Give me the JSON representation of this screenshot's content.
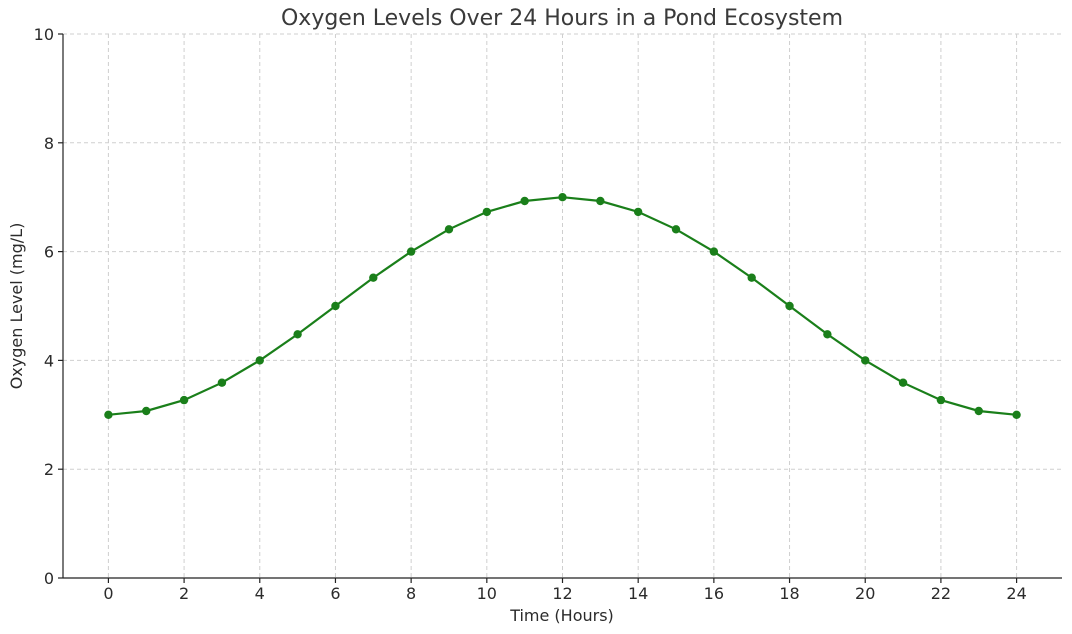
{
  "chart_data": {
    "type": "line",
    "title": "Oxygen Levels Over 24 Hours in a Pond Ecosystem",
    "xlabel": "Time (Hours)",
    "ylabel": "Oxygen Level (mg/L)",
    "xlim": [
      -1.2,
      25.2
    ],
    "ylim": [
      0,
      10
    ],
    "x_ticks": [
      0,
      2,
      4,
      6,
      8,
      10,
      12,
      14,
      16,
      18,
      20,
      22,
      24
    ],
    "y_ticks": [
      0,
      2,
      4,
      6,
      8,
      10
    ],
    "grid": true,
    "series": [
      {
        "color": "#1a7f1a",
        "marker": "circle",
        "x": [
          0,
          1,
          2,
          3,
          4,
          5,
          6,
          7,
          8,
          9,
          10,
          11,
          12,
          13,
          14,
          15,
          16,
          17,
          18,
          19,
          20,
          21,
          22,
          23,
          24
        ],
        "values": [
          3.0,
          3.07,
          3.27,
          3.59,
          4.0,
          4.48,
          5.0,
          5.52,
          6.0,
          6.41,
          6.73,
          6.93,
          7.0,
          6.93,
          6.73,
          6.41,
          6.0,
          5.52,
          5.0,
          4.48,
          4.0,
          3.59,
          3.27,
          3.07,
          3.0
        ]
      }
    ]
  }
}
